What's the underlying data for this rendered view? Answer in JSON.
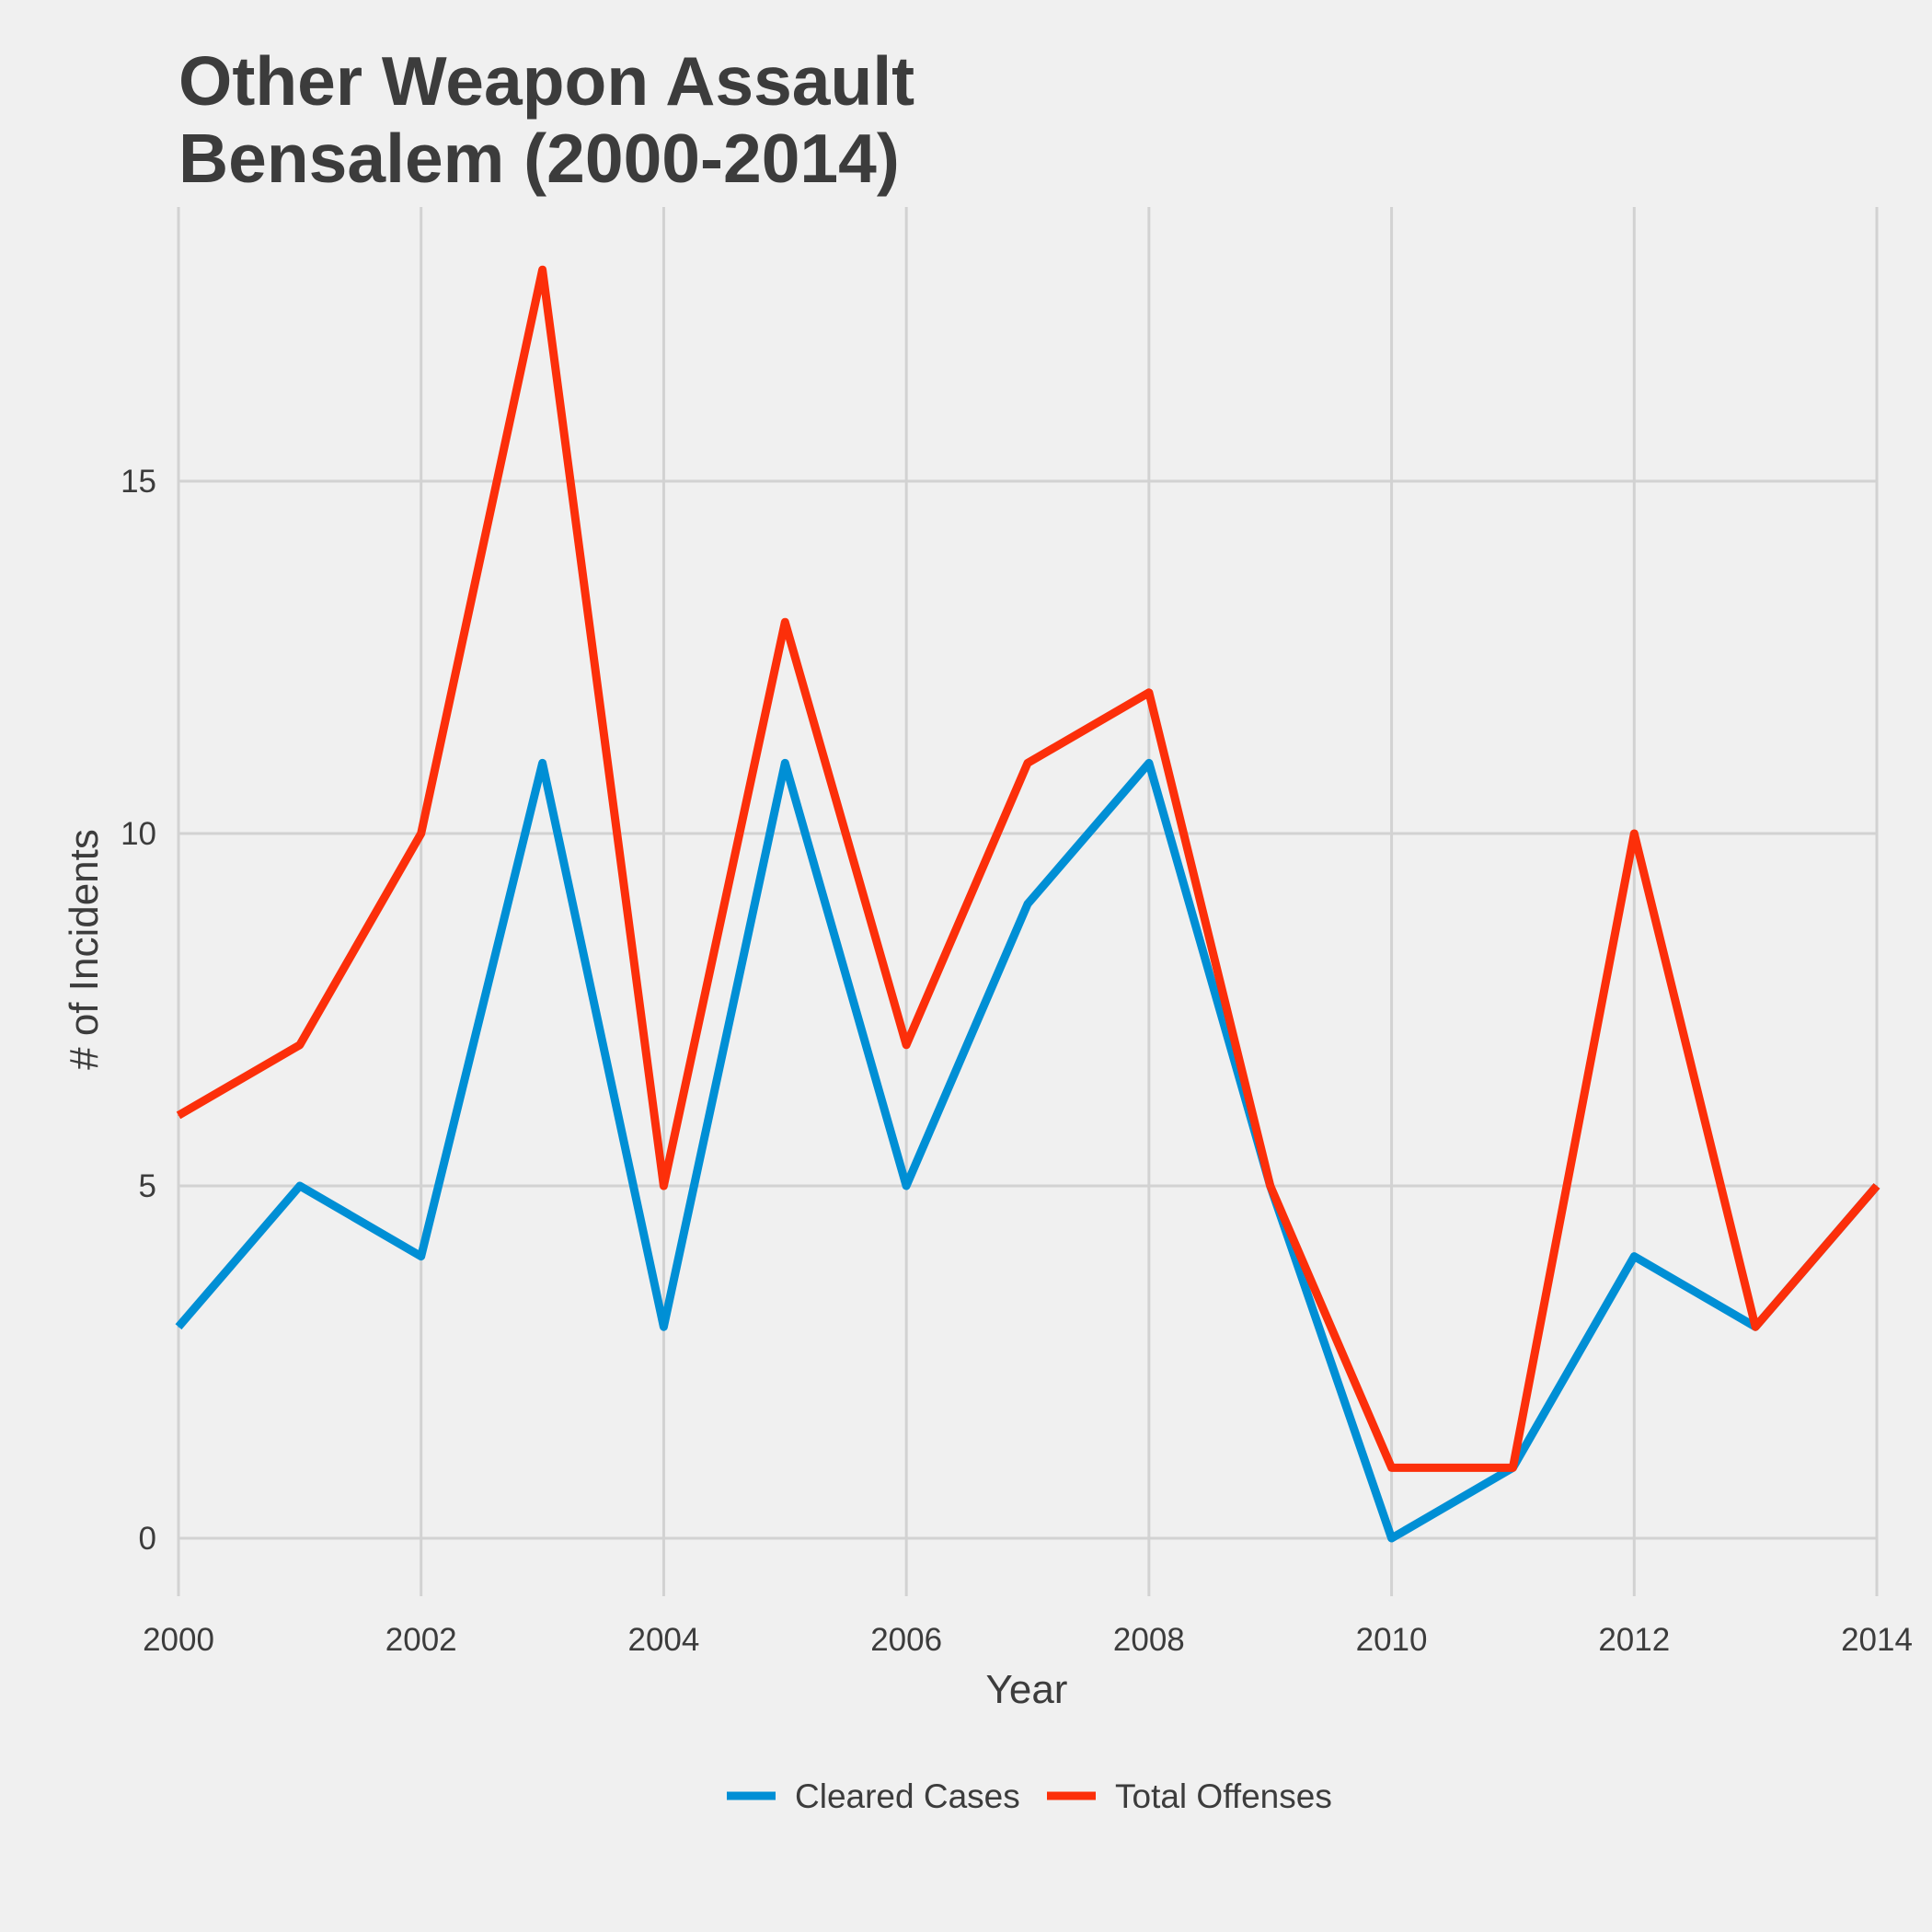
{
  "chart_data": {
    "type": "line",
    "title_lines": [
      "Other Weapon Assault",
      "Bensalem (2000-2014)"
    ],
    "xlabel": "Year",
    "ylabel": "# of Incidents",
    "x": [
      2000,
      2001,
      2002,
      2003,
      2004,
      2005,
      2006,
      2007,
      2008,
      2009,
      2010,
      2011,
      2012,
      2013,
      2014
    ],
    "x_ticks": [
      2000,
      2002,
      2004,
      2006,
      2008,
      2010,
      2012,
      2014
    ],
    "y_ticks": [
      0,
      5,
      10,
      15
    ],
    "xlim": [
      2000,
      2014
    ],
    "ylim": [
      -0.8,
      18.9
    ],
    "grid": true,
    "legend_position": "bottom",
    "series": [
      {
        "name": "Cleared Cases",
        "color": "#008fd5",
        "values": [
          3,
          5,
          4,
          11,
          3,
          11,
          5,
          9,
          11,
          5,
          0,
          1,
          4,
          3,
          5
        ]
      },
      {
        "name": "Total Offenses",
        "color": "#fc2f0a",
        "values": [
          6,
          7,
          10,
          18,
          5,
          13,
          7,
          11,
          12,
          5,
          1,
          1,
          10,
          3,
          5
        ]
      }
    ]
  }
}
